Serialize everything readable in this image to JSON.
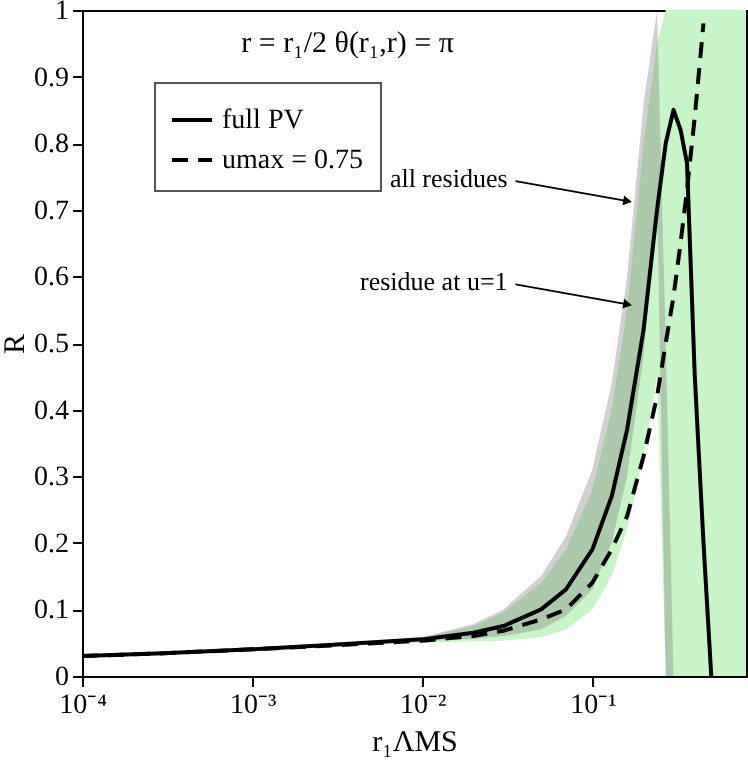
{
  "chart_data": {
    "type": "line",
    "title": "r = r₁/2  θ(r₁,r) = π",
    "xlabel": "r₁ΛMS",
    "ylabel": "R",
    "log": "x",
    "x": [
      0.0001,
      0.0003,
      0.001,
      0.003,
      0.01,
      0.02,
      0.03,
      0.05,
      0.07,
      0.1,
      0.13,
      0.16,
      0.2,
      0.24,
      0.27,
      0.3,
      0.33,
      0.36,
      0.4,
      0.45,
      0.5,
      0.6,
      0.8
    ],
    "series": [
      {
        "name": "full PV",
        "color": "#000000",
        "line_style": "solid",
        "values": [
          0.03,
          0.034,
          0.04,
          0.047,
          0.055,
          0.065,
          0.075,
          0.1,
          0.13,
          0.19,
          0.27,
          0.37,
          0.52,
          0.7,
          0.8,
          0.85,
          0.82,
          0.77,
          0.45,
          0.2,
          0,
          null,
          null
        ],
        "lower": [
          0.03,
          0.034,
          0.04,
          0.046,
          0.05,
          0.052,
          0.053,
          0.058,
          0.07,
          0.1,
          0.15,
          0.22,
          0.33,
          0.45,
          0,
          0,
          0,
          0,
          0,
          0,
          0,
          0,
          0
        ],
        "upper": [
          0.03,
          0.034,
          0.04,
          0.048,
          0.058,
          0.075,
          0.095,
          0.14,
          0.19,
          0.28,
          0.4,
          0.55,
          0.8,
          0.95,
          1,
          1,
          1,
          1,
          1,
          1,
          1,
          1,
          1
        ]
      },
      {
        "name": "umax = 0.75",
        "color": "#000000",
        "line_style": "dashed",
        "values": [
          0.03,
          0.034,
          0.04,
          0.046,
          0.053,
          0.06,
          0.068,
          0.085,
          0.1,
          0.14,
          0.19,
          0.24,
          0.33,
          0.42,
          0.5,
          0.57,
          0.65,
          0.73,
          0.84,
          0.98,
          null,
          null,
          null
        ],
        "lower": [
          0.03,
          0.034,
          0.04,
          0.046,
          0.052,
          0.056,
          0.06,
          0.07,
          0.09,
          0.13,
          0.2,
          0.3,
          0.48,
          0.72,
          0,
          0,
          null,
          null,
          null,
          null,
          null,
          null,
          null
        ],
        "upper": [
          0.03,
          0.034,
          0.04,
          0.048,
          0.058,
          0.078,
          0.1,
          0.15,
          0.21,
          0.31,
          0.44,
          0.6,
          0.86,
          1.0,
          0.5,
          0,
          null,
          null,
          null,
          null,
          null,
          null,
          null
        ]
      }
    ],
    "annotations": [
      {
        "text": "all residues",
        "x": 0.17,
        "y": 0.71
      },
      {
        "text": "residue at u=1",
        "x": 0.17,
        "y": 0.555
      }
    ],
    "xlim": [
      0.0001,
      0.8
    ],
    "xticks": [
      {
        "value": 0.0001,
        "label": "10⁻⁴"
      },
      {
        "value": 0.001,
        "label": "10⁻³"
      },
      {
        "value": 0.01,
        "label": "10⁻²"
      },
      {
        "value": 0.1,
        "label": "10⁻¹"
      }
    ],
    "ylim": [
      0,
      1
    ],
    "yticks": [
      0,
      0.1,
      0.2,
      0.3,
      0.4,
      0.5,
      0.6,
      0.7,
      0.8,
      0.9,
      1
    ],
    "grid": false,
    "legend": "top left"
  }
}
